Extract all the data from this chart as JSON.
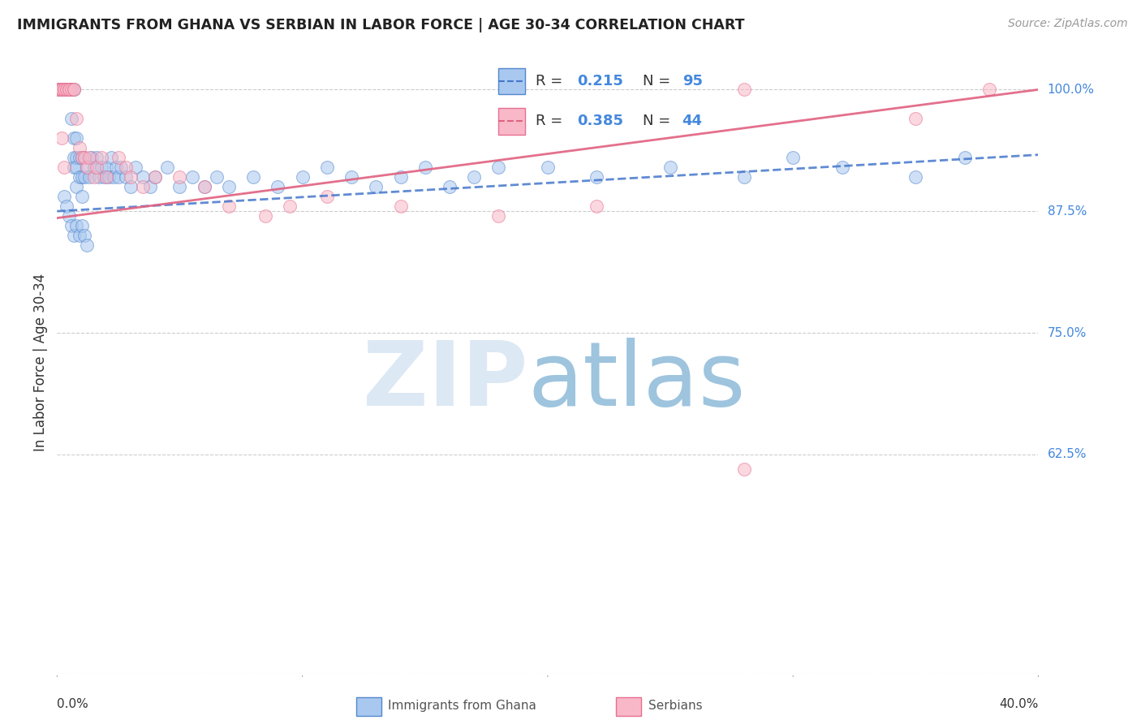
{
  "title": "IMMIGRANTS FROM GHANA VS SERBIAN IN LABOR FORCE | AGE 30-34 CORRELATION CHART",
  "source": "Source: ZipAtlas.com",
  "ylabel": "In Labor Force | Age 30-34",
  "ghana_color": "#A8C8F0",
  "serbian_color": "#F8B8C8",
  "ghana_edge_color": "#5588CC",
  "serbian_edge_color": "#E87090",
  "ghana_line_color": "#4477CC",
  "serbian_line_color": "#E06080",
  "background_color": "#FFFFFF",
  "ghana_R": 0.215,
  "ghana_N": 95,
  "serbian_R": 0.385,
  "serbian_N": 44,
  "xlim": [
    0.0,
    0.4
  ],
  "ylim": [
    0.4,
    1.04
  ],
  "ytick_vals": [
    1.0,
    0.875,
    0.75,
    0.625
  ],
  "ytick_labels": [
    "100.0%",
    "87.5%",
    "75.0%",
    "62.5%"
  ],
  "ghana_x": [
    0.001,
    0.001,
    0.001,
    0.002,
    0.002,
    0.002,
    0.002,
    0.003,
    0.003,
    0.003,
    0.003,
    0.003,
    0.004,
    0.004,
    0.004,
    0.004,
    0.004,
    0.005,
    0.005,
    0.005,
    0.005,
    0.006,
    0.006,
    0.006,
    0.007,
    0.007,
    0.007,
    0.007,
    0.008,
    0.008,
    0.008,
    0.008,
    0.009,
    0.009,
    0.01,
    0.01,
    0.01,
    0.011,
    0.011,
    0.012,
    0.013,
    0.014,
    0.015,
    0.016,
    0.017,
    0.018,
    0.019,
    0.02,
    0.021,
    0.022,
    0.023,
    0.024,
    0.025,
    0.026,
    0.028,
    0.03,
    0.032,
    0.035,
    0.038,
    0.04,
    0.045,
    0.05,
    0.055,
    0.06,
    0.065,
    0.07,
    0.08,
    0.09,
    0.1,
    0.11,
    0.12,
    0.13,
    0.14,
    0.15,
    0.16,
    0.17,
    0.18,
    0.2,
    0.22,
    0.25,
    0.28,
    0.3,
    0.32,
    0.35,
    0.37,
    0.003,
    0.004,
    0.005,
    0.006,
    0.007,
    0.008,
    0.009,
    0.01,
    0.011,
    0.012
  ],
  "ghana_y": [
    1.0,
    1.0,
    1.0,
    1.0,
    1.0,
    1.0,
    1.0,
    1.0,
    1.0,
    1.0,
    1.0,
    1.0,
    1.0,
    1.0,
    1.0,
    1.0,
    1.0,
    1.0,
    1.0,
    1.0,
    1.0,
    1.0,
    1.0,
    0.97,
    1.0,
    0.95,
    0.93,
    0.92,
    0.95,
    0.93,
    0.92,
    0.9,
    0.93,
    0.91,
    0.93,
    0.91,
    0.89,
    0.93,
    0.91,
    0.92,
    0.91,
    0.93,
    0.92,
    0.93,
    0.91,
    0.92,
    0.91,
    0.92,
    0.91,
    0.93,
    0.91,
    0.92,
    0.91,
    0.92,
    0.91,
    0.9,
    0.92,
    0.91,
    0.9,
    0.91,
    0.92,
    0.9,
    0.91,
    0.9,
    0.91,
    0.9,
    0.91,
    0.9,
    0.91,
    0.92,
    0.91,
    0.9,
    0.91,
    0.92,
    0.9,
    0.91,
    0.92,
    0.92,
    0.91,
    0.92,
    0.91,
    0.93,
    0.92,
    0.91,
    0.93,
    0.89,
    0.88,
    0.87,
    0.86,
    0.85,
    0.86,
    0.85,
    0.86,
    0.85,
    0.84
  ],
  "serbian_x": [
    0.001,
    0.001,
    0.001,
    0.002,
    0.002,
    0.002,
    0.003,
    0.003,
    0.004,
    0.004,
    0.005,
    0.005,
    0.006,
    0.007,
    0.007,
    0.008,
    0.009,
    0.01,
    0.011,
    0.012,
    0.013,
    0.015,
    0.016,
    0.018,
    0.02,
    0.025,
    0.028,
    0.03,
    0.035,
    0.04,
    0.05,
    0.06,
    0.07,
    0.085,
    0.095,
    0.11,
    0.14,
    0.18,
    0.22,
    0.28,
    0.35,
    0.38,
    0.002,
    0.003
  ],
  "serbian_y": [
    1.0,
    1.0,
    1.0,
    1.0,
    1.0,
    1.0,
    1.0,
    1.0,
    1.0,
    1.0,
    1.0,
    1.0,
    1.0,
    1.0,
    1.0,
    0.97,
    0.94,
    0.93,
    0.93,
    0.92,
    0.93,
    0.91,
    0.92,
    0.93,
    0.91,
    0.93,
    0.92,
    0.91,
    0.9,
    0.91,
    0.91,
    0.9,
    0.88,
    0.87,
    0.88,
    0.89,
    0.88,
    0.87,
    0.88,
    1.0,
    0.97,
    1.0,
    0.95,
    0.92
  ],
  "serbian_outlier_x": [
    0.28
  ],
  "serbian_outlier_y": [
    0.61
  ],
  "ghana_trendline": [
    0.875,
    0.933
  ],
  "serbian_trendline": [
    0.868,
    1.0
  ]
}
